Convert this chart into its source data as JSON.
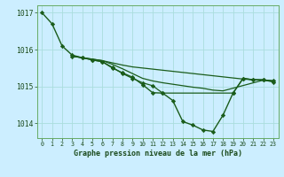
{
  "title": "Graphe pression niveau de la mer (hPa)",
  "bg_color": "#cceeff",
  "grid_color": "#aadddd",
  "line_color": "#1a5c1a",
  "xlim": [
    -0.5,
    23.5
  ],
  "ylim": [
    1013.6,
    1017.2
  ],
  "yticks": [
    1014,
    1015,
    1016,
    1017
  ],
  "xticks": [
    0,
    1,
    2,
    3,
    4,
    5,
    6,
    7,
    8,
    9,
    10,
    11,
    12,
    13,
    14,
    15,
    16,
    17,
    18,
    19,
    20,
    21,
    22,
    23
  ],
  "series": [
    {
      "x": [
        0,
        1,
        2,
        3,
        4,
        5,
        6,
        7,
        8,
        9,
        10,
        11,
        12,
        13,
        14,
        15,
        16,
        17,
        18,
        19,
        20,
        21,
        22,
        23
      ],
      "y": [
        1017.0,
        1016.7,
        1016.1,
        1015.85,
        1015.78,
        1015.72,
        1015.67,
        1015.5,
        1015.37,
        1015.25,
        1015.05,
        1014.83,
        1014.82,
        1014.62,
        1014.05,
        1013.95,
        1013.82,
        1013.78,
        1014.22,
        1014.82,
        1015.22,
        1015.18,
        1015.18,
        1015.12
      ],
      "marker": "D",
      "markersize": 2.2,
      "linewidth": 1.0
    },
    {
      "x": [
        3,
        4,
        5,
        6,
        7,
        8,
        9,
        10,
        11,
        12,
        13,
        14,
        15,
        16,
        17,
        18,
        19,
        20,
        21,
        22,
        23
      ],
      "y": [
        1015.82,
        1015.78,
        1015.74,
        1015.7,
        1015.64,
        1015.58,
        1015.53,
        1015.5,
        1015.47,
        1015.44,
        1015.41,
        1015.38,
        1015.35,
        1015.32,
        1015.29,
        1015.26,
        1015.23,
        1015.2,
        1015.18,
        1015.17,
        1015.15
      ],
      "marker": null,
      "markersize": 0,
      "linewidth": 0.9
    },
    {
      "x": [
        3,
        4,
        5,
        6,
        7,
        8,
        9,
        10,
        11,
        12,
        13,
        14,
        15,
        16,
        17,
        18,
        22,
        23
      ],
      "y": [
        1015.82,
        1015.78,
        1015.74,
        1015.7,
        1015.6,
        1015.48,
        1015.35,
        1015.22,
        1015.15,
        1015.1,
        1015.06,
        1015.02,
        1014.98,
        1014.95,
        1014.9,
        1014.88,
        1015.17,
        1015.15
      ],
      "marker": null,
      "markersize": 0,
      "linewidth": 0.9
    },
    {
      "x": [
        3,
        4,
        5,
        6,
        7,
        8,
        9,
        10,
        11,
        12,
        19,
        20,
        21,
        22,
        23
      ],
      "y": [
        1015.82,
        1015.78,
        1015.72,
        1015.67,
        1015.52,
        1015.35,
        1015.22,
        1015.1,
        1015.02,
        1014.82,
        1014.82,
        1015.22,
        1015.18,
        1015.18,
        1015.15
      ],
      "marker": "D",
      "markersize": 2.2,
      "linewidth": 0.9
    }
  ]
}
